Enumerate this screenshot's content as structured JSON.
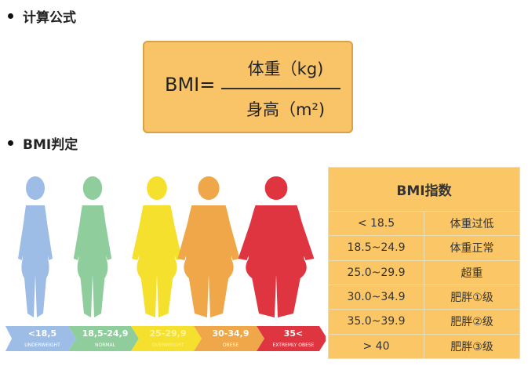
{
  "sections": {
    "formula_heading": "计算公式",
    "bmi_heading": "BMI判定"
  },
  "formula": {
    "lhs": "BMI=",
    "numerator": "体重（kg)",
    "denominator": "身高（m²)"
  },
  "table": {
    "title": "BMI指数",
    "rows": [
      [
        "< 18.5",
        "体重过低"
      ],
      [
        "18.5~24.9",
        "体重正常"
      ],
      [
        "25.0~29.9",
        "超重"
      ],
      [
        "30.0~34.9",
        "肥胖①级"
      ],
      [
        "35.0~39.9",
        "肥胖②级"
      ],
      [
        "> 40",
        "肥胖③级"
      ]
    ]
  },
  "categories": [
    {
      "range": "<18,5",
      "label": "UNDERWEIGHT",
      "color": "#9dbde6"
    },
    {
      "range": "18,5-24,9",
      "label": "NORMAL",
      "color": "#8fcd9c"
    },
    {
      "range": "25-29,9",
      "label": "OVERWEIGHT",
      "color": "#f6e02e"
    },
    {
      "range": "30-34,9",
      "label": "OBESE",
      "color": "#f0a74a"
    },
    {
      "range": "35<",
      "label": "EXTREMLY OBESE",
      "color": "#df3540"
    }
  ]
}
